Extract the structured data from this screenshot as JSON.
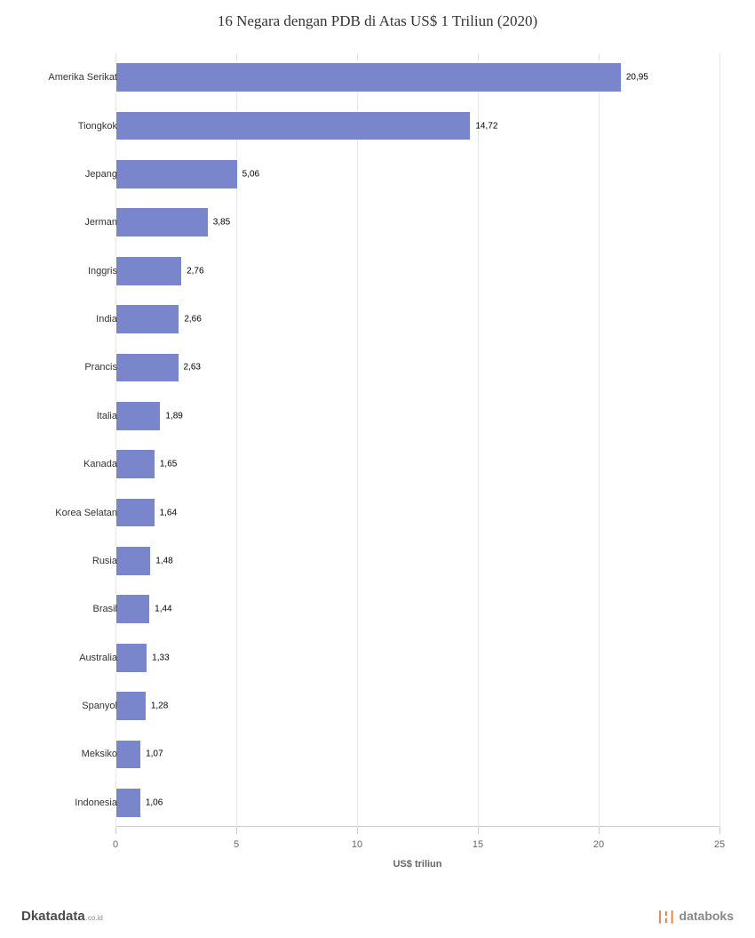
{
  "title": "16 Negara dengan PDB di Atas US$ 1 Triliun (2020)",
  "chart": {
    "type": "bar-horizontal",
    "x_axis_title": "US$ triliun",
    "xlim": [
      0,
      25
    ],
    "xtick_step": 5,
    "xticks": [
      0,
      5,
      10,
      15,
      20,
      25
    ],
    "bar_color": "#7986cb",
    "bar_border_color": "#ffffff",
    "grid_color": "#e6e6e6",
    "background_color": "#ffffff",
    "value_label_fontsize": 10,
    "value_label_color": "#000000",
    "category_label_fontsize": 11,
    "category_label_color": "#333333",
    "tick_label_fontsize": 11,
    "tick_label_color": "#666666",
    "title_fontsize": 17,
    "title_color": "#333333",
    "categories": [
      "Amerika Serikat",
      "Tiongkok",
      "Jepang",
      "Jerman",
      "Inggris",
      "India",
      "Prancis",
      "Italia",
      "Kanada",
      "Korea Selatan",
      "Rusia",
      "Brasil",
      "Australia",
      "Spanyol",
      "Meksiko",
      "Indonesia"
    ],
    "values": [
      20.95,
      14.72,
      5.06,
      3.85,
      2.76,
      2.66,
      2.63,
      1.89,
      1.65,
      1.64,
      1.48,
      1.44,
      1.33,
      1.28,
      1.07,
      1.06
    ],
    "value_labels": [
      "20,95",
      "14,72",
      "5,06",
      "3,85",
      "2,76",
      "2,66",
      "2,63",
      "1,89",
      "1,65",
      "1,64",
      "1,48",
      "1,44",
      "1,33",
      "1,28",
      "1,07",
      "1,06"
    ]
  },
  "footer": {
    "left_logo_prefix": "D",
    "left_logo_main": "katadata",
    "left_logo_suffix": ".co.id",
    "right_logo_icon": "❘¦❘",
    "right_logo_text": "databoks"
  }
}
